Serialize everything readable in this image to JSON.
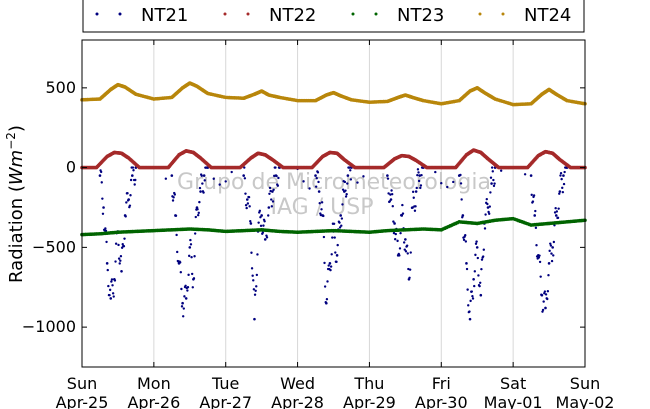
{
  "chart_data": {
    "type": "scatter",
    "title": "",
    "ylabel_text": "Radiation (",
    "ylabel_unit": "Wm",
    "ylabel_exp": "−2",
    "ylabel_close": ")",
    "xlim": [
      0,
      7
    ],
    "ylim": [
      -1250,
      800
    ],
    "yticks": [
      500,
      0,
      -500,
      -1000
    ],
    "ytick_labels": [
      "500",
      "0",
      "−500",
      "−1000"
    ],
    "xtick_days": [
      "Sun",
      "Mon",
      "Tue",
      "Wed",
      "Thu",
      "Fri",
      "Sat",
      "Sun"
    ],
    "xtick_dates": [
      "Apr-25",
      "Apr-26",
      "Apr-27",
      "Apr-28",
      "Apr-29",
      "Apr-30",
      "May-01",
      "May-02"
    ],
    "grid": true,
    "legend_position": "top",
    "watermark": [
      "Grupo de Micrometeorologia",
      "IAG / USP"
    ],
    "series": [
      {
        "name": "NT21",
        "color": "#00007f",
        "x": [
          0.25,
          0.3,
          0.35,
          0.4,
          0.45,
          0.5,
          0.55,
          0.6,
          0.65,
          0.7,
          0.75,
          1.25,
          1.3,
          1.35,
          1.4,
          1.45,
          1.5,
          1.55,
          1.6,
          1.65,
          1.7,
          1.75,
          2.25,
          2.3,
          2.35,
          2.4,
          2.45,
          2.5,
          2.55,
          2.6,
          2.65,
          2.7,
          2.75,
          3.25,
          3.3,
          3.35,
          3.4,
          3.45,
          3.5,
          3.55,
          3.6,
          3.65,
          3.7,
          3.75,
          4.25,
          4.3,
          4.35,
          4.4,
          4.45,
          4.5,
          4.55,
          4.6,
          4.65,
          4.7,
          4.75,
          5.25,
          5.3,
          5.35,
          5.4,
          5.45,
          5.5,
          5.55,
          5.6,
          5.65,
          5.7,
          5.75,
          6.25,
          6.3,
          6.35,
          6.4,
          6.45,
          6.5,
          6.55,
          6.6,
          6.65,
          6.7,
          6.75
        ],
        "y": [
          -50,
          -250,
          -600,
          -820,
          -700,
          -400,
          -650,
          -300,
          -200,
          -50,
          0,
          -50,
          -300,
          -600,
          -850,
          -820,
          -500,
          -700,
          -250,
          -150,
          -50,
          0,
          -50,
          -200,
          -350,
          -950,
          -400,
          -300,
          -450,
          -250,
          -150,
          -50,
          0,
          -50,
          -150,
          -300,
          -850,
          -600,
          -400,
          -550,
          -300,
          -150,
          -50,
          0,
          -50,
          -200,
          -350,
          -550,
          -300,
          -450,
          -700,
          -250,
          -150,
          -50,
          0,
          -50,
          -300,
          -600,
          -950,
          -700,
          -500,
          -800,
          -350,
          -250,
          -100,
          0,
          -50,
          -300,
          -550,
          -800,
          -880,
          -600,
          -500,
          -300,
          -150,
          -50,
          0
        ]
      },
      {
        "name": "NT22",
        "color": "#a52a2a",
        "x": [
          0,
          0.2,
          0.35,
          0.45,
          0.55,
          0.65,
          0.8,
          1.0,
          1.2,
          1.35,
          1.45,
          1.55,
          1.65,
          1.8,
          2.0,
          2.2,
          2.35,
          2.45,
          2.55,
          2.65,
          2.8,
          3.0,
          3.2,
          3.35,
          3.45,
          3.55,
          3.65,
          3.8,
          4.0,
          4.2,
          4.35,
          4.45,
          4.55,
          4.65,
          4.8,
          5.0,
          5.2,
          5.35,
          5.45,
          5.55,
          5.65,
          5.8,
          6.0,
          6.2,
          6.35,
          6.45,
          6.55,
          6.65,
          6.8,
          7.0
        ],
        "y": [
          0,
          0,
          70,
          95,
          90,
          60,
          0,
          0,
          0,
          80,
          105,
          95,
          60,
          0,
          0,
          0,
          60,
          90,
          80,
          50,
          0,
          0,
          0,
          70,
          95,
          90,
          50,
          0,
          0,
          0,
          55,
          75,
          70,
          45,
          0,
          0,
          0,
          80,
          110,
          95,
          55,
          0,
          0,
          0,
          75,
          100,
          90,
          50,
          0,
          0
        ]
      },
      {
        "name": "NT23",
        "color": "#006400",
        "x": [
          0,
          0.25,
          0.5,
          0.75,
          1.0,
          1.25,
          1.5,
          1.75,
          2.0,
          2.25,
          2.5,
          2.75,
          3.0,
          3.25,
          3.5,
          3.75,
          4.0,
          4.25,
          4.5,
          4.75,
          5.0,
          5.25,
          5.5,
          5.75,
          6.0,
          6.25,
          6.5,
          6.75,
          7.0
        ],
        "y": [
          -420,
          -415,
          -405,
          -400,
          -395,
          -390,
          -385,
          -390,
          -400,
          -395,
          -390,
          -400,
          -405,
          -400,
          -395,
          -400,
          -405,
          -395,
          -390,
          -385,
          -390,
          -340,
          -350,
          -330,
          -320,
          -360,
          -350,
          -340,
          -330
        ]
      },
      {
        "name": "NT24",
        "color": "#b8860b",
        "x": [
          0,
          0.25,
          0.4,
          0.5,
          0.6,
          0.75,
          1.0,
          1.25,
          1.4,
          1.5,
          1.6,
          1.75,
          2.0,
          2.25,
          2.4,
          2.5,
          2.6,
          2.75,
          3.0,
          3.25,
          3.4,
          3.5,
          3.6,
          3.75,
          4.0,
          4.25,
          4.4,
          4.5,
          4.6,
          4.75,
          5.0,
          5.25,
          5.4,
          5.5,
          5.6,
          5.75,
          6.0,
          6.25,
          6.4,
          6.5,
          6.6,
          6.75,
          7.0
        ],
        "y": [
          425,
          430,
          490,
          520,
          505,
          460,
          430,
          440,
          500,
          530,
          510,
          465,
          440,
          435,
          460,
          480,
          455,
          440,
          420,
          420,
          455,
          470,
          450,
          425,
          410,
          415,
          440,
          455,
          440,
          420,
          400,
          420,
          480,
          500,
          470,
          430,
          395,
          400,
          460,
          490,
          460,
          420,
          400
        ]
      }
    ]
  }
}
